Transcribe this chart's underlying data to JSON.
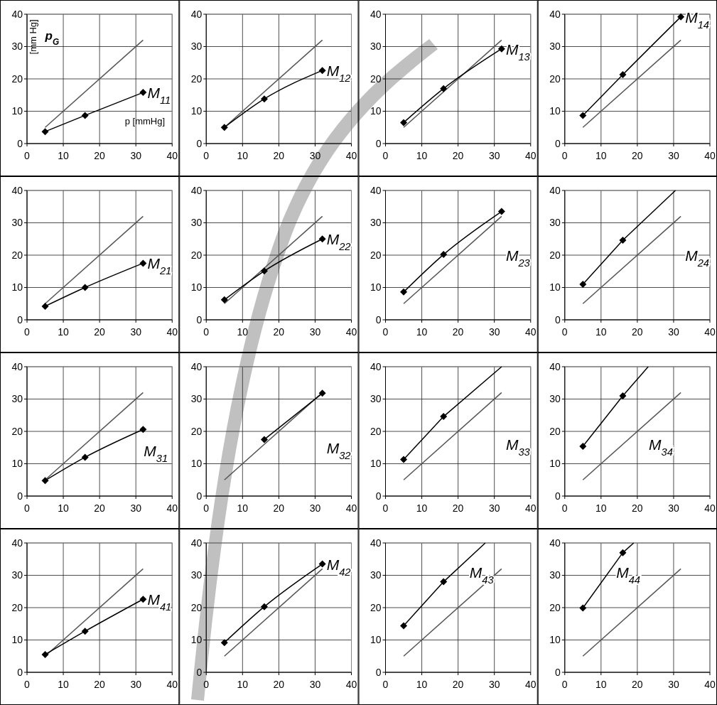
{
  "chart_data": [
    {
      "type": "line",
      "title": "p$_{G}$",
      "xlabel": "p [mmHg]",
      "ylabel": "[mm Hg]",
      "xlim": [
        0,
        40
      ],
      "ylim": [
        0,
        40
      ],
      "xticks": [
        0,
        10,
        20,
        30,
        40
      ],
      "yticks": [
        0,
        10,
        20,
        30,
        40
      ],
      "grid": true,
      "line_style": "solid",
      "annotations": [
        "M$_{11}$"
      ],
      "series": [
        {
          "color": "#555555",
          "marker": "none",
          "x": [
            5,
            32
          ],
          "values": [
            5,
            32
          ]
        },
        {
          "color": "#000000",
          "marker": "diamond",
          "x": [
            5,
            16,
            32
          ],
          "values": [
            3.7,
            8.7,
            15.8
          ]
        }
      ]
    },
    {
      "type": "line",
      "xlim": [
        0,
        40
      ],
      "ylim": [
        0,
        40
      ],
      "xticks": [
        0,
        10,
        20,
        30,
        40
      ],
      "yticks": [
        0,
        10,
        20,
        30,
        40
      ],
      "grid": true,
      "line_style": "solid",
      "annotations": [
        "M$_{12}$"
      ],
      "series": [
        {
          "color": "#555555",
          "marker": "none",
          "x": [
            5,
            32
          ],
          "values": [
            5,
            32
          ]
        },
        {
          "color": "#000000",
          "marker": "diamond",
          "x": [
            5,
            16,
            32
          ],
          "values": [
            5,
            13.8,
            22.6
          ]
        }
      ]
    },
    {
      "type": "line",
      "xlim": [
        0,
        40
      ],
      "ylim": [
        0,
        40
      ],
      "xticks": [
        0,
        10,
        20,
        30,
        40
      ],
      "yticks": [
        0,
        10,
        20,
        30,
        40
      ],
      "grid": true,
      "line_style": "solid",
      "annotations": [
        "M$_{13}$"
      ],
      "series": [
        {
          "color": "#555555",
          "marker": "none",
          "x": [
            5,
            32
          ],
          "values": [
            5,
            32
          ]
        },
        {
          "color": "#000000",
          "marker": "diamond",
          "x": [
            5,
            16,
            32
          ],
          "values": [
            6.5,
            17,
            29.3
          ]
        }
      ]
    },
    {
      "type": "line",
      "xlim": [
        0,
        40
      ],
      "ylim": [
        0,
        40
      ],
      "xticks": [
        0,
        10,
        20,
        30,
        40
      ],
      "yticks": [
        0,
        10,
        20,
        30,
        40
      ],
      "grid": true,
      "line_style": "solid",
      "annotations": [
        "M$_{14}$"
      ],
      "series": [
        {
          "color": "#555555",
          "marker": "none",
          "x": [
            5,
            32
          ],
          "values": [
            5,
            32
          ]
        },
        {
          "color": "#000000",
          "marker": "diamond",
          "x": [
            5,
            16,
            32
          ],
          "values": [
            8.7,
            21.3,
            39.2
          ]
        }
      ]
    },
    {
      "type": "line",
      "xlim": [
        0,
        40
      ],
      "ylim": [
        0,
        40
      ],
      "xticks": [
        0,
        10,
        20,
        30,
        40
      ],
      "yticks": [
        0,
        10,
        20,
        30,
        40
      ],
      "grid": true,
      "line_style": "solid",
      "annotations": [
        "M$_{21}$"
      ],
      "series": [
        {
          "color": "#555555",
          "marker": "none",
          "x": [
            5,
            32
          ],
          "values": [
            5,
            32
          ]
        },
        {
          "color": "#000000",
          "marker": "diamond",
          "x": [
            5,
            16,
            32
          ],
          "values": [
            4.2,
            10,
            17.5
          ]
        }
      ]
    },
    {
      "type": "line",
      "xlim": [
        0,
        40
      ],
      "ylim": [
        0,
        40
      ],
      "xticks": [
        0,
        10,
        20,
        30,
        40
      ],
      "yticks": [
        0,
        10,
        20,
        30,
        40
      ],
      "grid": true,
      "line_style": "solid",
      "annotations": [
        "M$_{22}$"
      ],
      "series": [
        {
          "color": "#555555",
          "marker": "none",
          "x": [
            5,
            32
          ],
          "values": [
            5,
            32
          ]
        },
        {
          "color": "#000000",
          "marker": "diamond",
          "x": [
            5,
            16,
            32
          ],
          "values": [
            6.2,
            15.1,
            25
          ]
        }
      ]
    },
    {
      "type": "line",
      "xlim": [
        0,
        40
      ],
      "ylim": [
        0,
        40
      ],
      "xticks": [
        0,
        10,
        20,
        30,
        40
      ],
      "yticks": [
        0,
        10,
        20,
        30,
        40
      ],
      "grid": true,
      "line_style": "solid",
      "annotations": [
        "M$_{23}$"
      ],
      "series": [
        {
          "color": "#555555",
          "marker": "none",
          "x": [
            5,
            32
          ],
          "values": [
            5,
            32
          ]
        },
        {
          "color": "#000000",
          "marker": "diamond",
          "x": [
            5,
            16,
            32
          ],
          "values": [
            8.6,
            20.2,
            33.5
          ]
        }
      ]
    },
    {
      "type": "line",
      "xlim": [
        0,
        40
      ],
      "ylim": [
        0,
        40
      ],
      "xticks": [
        0,
        10,
        20,
        30,
        40
      ],
      "yticks": [
        0,
        10,
        20,
        30,
        40
      ],
      "grid": true,
      "line_style": "solid",
      "annotations": [
        "M$_{24}$"
      ],
      "series": [
        {
          "color": "#555555",
          "marker": "none",
          "x": [
            5,
            32
          ],
          "values": [
            5,
            32
          ]
        },
        {
          "color": "#000000",
          "marker": "diamond",
          "x": [
            5,
            16
          ],
          "values": [
            11,
            24.6
          ]
        },
        {
          "color": "#000000",
          "marker": "none",
          "x": [
            16,
            30.5
          ],
          "values": [
            24.6,
            40
          ]
        }
      ]
    },
    {
      "type": "line",
      "xlim": [
        0,
        40
      ],
      "ylim": [
        0,
        40
      ],
      "xticks": [
        0,
        10,
        20,
        30,
        40
      ],
      "yticks": [
        0,
        10,
        20,
        30,
        40
      ],
      "grid": true,
      "line_style": "solid",
      "annotations": [
        "M$_{31}$"
      ],
      "series": [
        {
          "color": "#555555",
          "marker": "none",
          "x": [
            5,
            32
          ],
          "values": [
            5,
            32
          ]
        },
        {
          "color": "#000000",
          "marker": "diamond",
          "x": [
            5,
            16,
            32
          ],
          "values": [
            4.8,
            12,
            20.6
          ]
        }
      ]
    },
    {
      "type": "line",
      "xlim": [
        0,
        40
      ],
      "ylim": [
        0,
        40
      ],
      "xticks": [
        0,
        10,
        20,
        30,
        40
      ],
      "yticks": [
        0,
        10,
        20,
        30,
        40
      ],
      "grid": true,
      "line_style": "solid",
      "annotations": [
        "M$_{32}$"
      ],
      "series": [
        {
          "color": "#555555",
          "marker": "none",
          "x": [
            5,
            32
          ],
          "values": [
            5,
            32
          ]
        },
        {
          "color": "#000000",
          "marker": "diamond",
          "x": [
            16,
            32
          ],
          "values": [
            17.5,
            31.8
          ]
        }
      ]
    },
    {
      "type": "line",
      "xlim": [
        0,
        40
      ],
      "ylim": [
        0,
        40
      ],
      "xticks": [
        0,
        10,
        20,
        30,
        40
      ],
      "yticks": [
        0,
        10,
        20,
        30,
        40
      ],
      "grid": true,
      "line_style": "solid",
      "annotations": [
        "M$_{33}$"
      ],
      "series": [
        {
          "color": "#555555",
          "marker": "none",
          "x": [
            5,
            32
          ],
          "values": [
            5,
            32
          ]
        },
        {
          "color": "#000000",
          "marker": "diamond",
          "x": [
            5,
            16
          ],
          "values": [
            11.3,
            24.6
          ]
        },
        {
          "color": "#000000",
          "marker": "none",
          "x": [
            16,
            32
          ],
          "values": [
            24.6,
            40
          ]
        }
      ]
    },
    {
      "type": "line",
      "xlim": [
        0,
        40
      ],
      "ylim": [
        0,
        40
      ],
      "xticks": [
        0,
        10,
        20,
        30,
        40
      ],
      "yticks": [
        0,
        10,
        20,
        30,
        40
      ],
      "grid": true,
      "line_style": "solid",
      "annotations": [
        "M$_{34}$"
      ],
      "series": [
        {
          "color": "#555555",
          "marker": "none",
          "x": [
            5,
            32
          ],
          "values": [
            5,
            32
          ]
        },
        {
          "color": "#000000",
          "marker": "diamond",
          "x": [
            5,
            16
          ],
          "values": [
            15.4,
            31
          ]
        },
        {
          "color": "#000000",
          "marker": "none",
          "x": [
            16,
            23
          ],
          "values": [
            31,
            40
          ]
        }
      ]
    },
    {
      "type": "line",
      "xlim": [
        0,
        40
      ],
      "ylim": [
        0,
        40
      ],
      "xticks": [
        0,
        10,
        20,
        30,
        40
      ],
      "yticks": [
        0,
        10,
        20,
        30,
        40
      ],
      "grid": true,
      "line_style": "solid",
      "annotations": [
        "M$_{41}$"
      ],
      "series": [
        {
          "color": "#555555",
          "marker": "none",
          "x": [
            5,
            32
          ],
          "values": [
            5,
            32
          ]
        },
        {
          "color": "#000000",
          "marker": "diamond",
          "x": [
            5,
            16,
            32
          ],
          "values": [
            5.5,
            12.7,
            22.6
          ]
        }
      ]
    },
    {
      "type": "line",
      "xlim": [
        0,
        40
      ],
      "ylim": [
        0,
        40
      ],
      "xticks": [
        0,
        10,
        20,
        30,
        40
      ],
      "yticks": [
        0,
        10,
        20,
        30,
        40
      ],
      "grid": true,
      "line_style": "solid",
      "annotations": [
        "M$_{42}$"
      ],
      "series": [
        {
          "color": "#555555",
          "marker": "none",
          "x": [
            5,
            32
          ],
          "values": [
            5,
            32
          ]
        },
        {
          "color": "#000000",
          "marker": "diamond",
          "x": [
            5,
            16,
            32
          ],
          "values": [
            9.2,
            20.3,
            33.5
          ]
        }
      ]
    },
    {
      "type": "line",
      "xlim": [
        0,
        40
      ],
      "ylim": [
        0,
        40
      ],
      "xticks": [
        0,
        10,
        20,
        30,
        40
      ],
      "yticks": [
        0,
        10,
        20,
        30,
        40
      ],
      "grid": true,
      "line_style": "solid",
      "annotations": [
        "M$_{43}$"
      ],
      "series": [
        {
          "color": "#555555",
          "marker": "none",
          "x": [
            5,
            32
          ],
          "values": [
            5,
            32
          ]
        },
        {
          "color": "#000000",
          "marker": "diamond",
          "x": [
            5,
            16
          ],
          "values": [
            14.4,
            28
          ]
        },
        {
          "color": "#000000",
          "marker": "none",
          "x": [
            16,
            27.5
          ],
          "values": [
            28,
            40
          ]
        }
      ]
    },
    {
      "type": "line",
      "xlim": [
        0,
        40
      ],
      "ylim": [
        0,
        40
      ],
      "xticks": [
        0,
        10,
        20,
        30,
        40
      ],
      "yticks": [
        0,
        10,
        20,
        30,
        40
      ],
      "grid": true,
      "line_style": "solid",
      "annotations": [
        "M$_{44}$"
      ],
      "series": [
        {
          "color": "#555555",
          "marker": "none",
          "x": [
            5,
            32
          ],
          "values": [
            5,
            32
          ]
        },
        {
          "color": "#000000",
          "marker": "diamond",
          "x": [
            5,
            16
          ],
          "values": [
            19.9,
            37
          ]
        },
        {
          "color": "#000000",
          "marker": "none",
          "x": [
            16,
            19
          ],
          "values": [
            37,
            40
          ]
        }
      ]
    }
  ]
}
